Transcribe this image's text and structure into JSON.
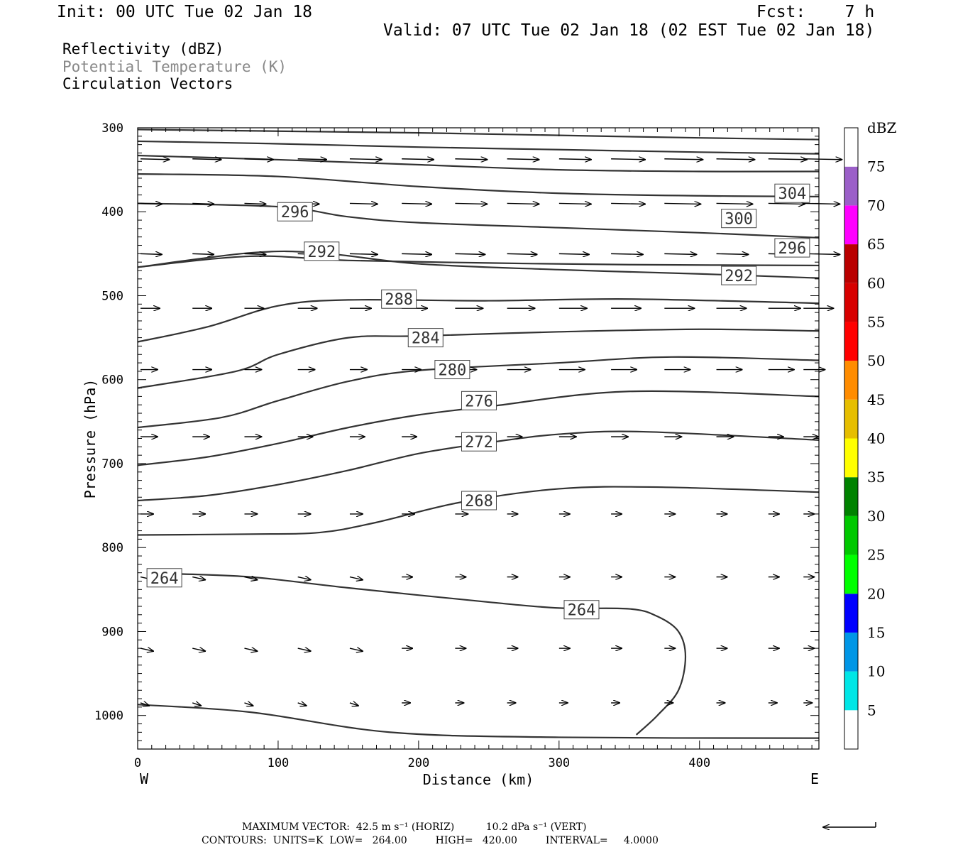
{
  "header": {
    "init": "Init: 00 UTC Tue 02 Jan 18",
    "fcst": "Fcst:    7 h",
    "valid": "Valid: 07 UTC Tue 02 Jan 18 (02 EST Tue 02 Jan 18)"
  },
  "fields": {
    "reflectivity": "Reflectivity (dBZ)",
    "theta": "Potential Temperature (K)",
    "vectors": "Circulation Vectors"
  },
  "footer": {
    "max_vector": "MAXIMUM VECTOR:  42.5 m s⁻¹ (HORIZ)          10.2 dPa s⁻¹ (VERT)",
    "contours": "CONTOURS:  UNITS=K  LOW=   264.00         HIGH=   420.00         INTERVAL=     4.0000"
  },
  "colors": {
    "contour": "#333333",
    "vector": "#000000"
  },
  "chart_data": {
    "type": "cross-section",
    "xlabel": "Distance (km)",
    "ylabel": "Pressure (hPa)",
    "x_end_left": "W",
    "x_end_right": "E",
    "xlim": [
      0,
      485
    ],
    "ylim": [
      1040,
      300
    ],
    "xticks": [
      0,
      100,
      200,
      300,
      400
    ],
    "yticks": [
      300,
      400,
      500,
      600,
      700,
      800,
      900,
      1000
    ],
    "colorbar": {
      "title": "dBZ",
      "labels": [
        "5",
        "10",
        "15",
        "20",
        "25",
        "30",
        "35",
        "40",
        "45",
        "50",
        "55",
        "60",
        "65",
        "70",
        "75"
      ],
      "colors": [
        "#ffffff",
        "#00e6e6",
        "#0096e6",
        "#0000ff",
        "#00ff00",
        "#00c800",
        "#008200",
        "#ffff00",
        "#e6be00",
        "#ff8c00",
        "#ff0000",
        "#d70000",
        "#b90000",
        "#ff00ff",
        "#9b5fc8",
        "#ffffff"
      ]
    },
    "isentropes": [
      {
        "label": "304",
        "points": [
          [
            0,
            302
          ],
          [
            100,
            304
          ],
          [
            200,
            306
          ],
          [
            300,
            309
          ],
          [
            400,
            312
          ],
          [
            485,
            314
          ]
        ],
        "labels_at": [
          [
            466,
            378
          ]
        ]
      },
      {
        "label": "",
        "points": [
          [
            0,
            316
          ],
          [
            100,
            319
          ],
          [
            200,
            323
          ],
          [
            300,
            326
          ],
          [
            400,
            329
          ],
          [
            485,
            331
          ]
        ],
        "labels_at": []
      },
      {
        "label": "",
        "points": [
          [
            0,
            333
          ],
          [
            100,
            338
          ],
          [
            200,
            344
          ],
          [
            300,
            350
          ],
          [
            400,
            352
          ],
          [
            485,
            352
          ]
        ],
        "labels_at": []
      },
      {
        "label": "",
        "points": [
          [
            0,
            355
          ],
          [
            100,
            358
          ],
          [
            200,
            370
          ],
          [
            300,
            378
          ],
          [
            400,
            381
          ],
          [
            485,
            382
          ]
        ],
        "labels_at": []
      },
      {
        "label": "296/300",
        "points": [
          [
            0,
            390
          ],
          [
            100,
            394
          ],
          [
            150,
            406
          ],
          [
            200,
            413
          ],
          [
            300,
            419
          ],
          [
            400,
            425
          ],
          [
            485,
            431
          ]
        ],
        "labels_at": [
          [
            112,
            400
          ],
          [
            428,
            408
          ]
        ]
      },
      {
        "label": "296",
        "points": [
          [
            0,
            466
          ],
          [
            80,
            453
          ],
          [
            150,
            458
          ],
          [
            250,
            461
          ],
          [
            350,
            463
          ],
          [
            485,
            464
          ]
        ],
        "labels_at": [
          [
            466,
            443
          ]
        ]
      },
      {
        "label": "292",
        "points": [
          [
            0,
            466
          ],
          [
            80,
            449
          ],
          [
            130,
            449
          ],
          [
            200,
            462
          ],
          [
            300,
            469
          ],
          [
            400,
            474
          ],
          [
            485,
            479
          ]
        ],
        "labels_at": [
          [
            131,
            447
          ],
          [
            428,
            476
          ]
        ]
      },
      {
        "label": "288",
        "points": [
          [
            0,
            555
          ],
          [
            50,
            537
          ],
          [
            100,
            512
          ],
          [
            150,
            505
          ],
          [
            250,
            506
          ],
          [
            350,
            504
          ],
          [
            485,
            509
          ]
        ],
        "labels_at": [
          [
            186,
            504
          ]
        ]
      },
      {
        "label": "284",
        "points": [
          [
            0,
            610
          ],
          [
            70,
            590
          ],
          [
            100,
            570
          ],
          [
            150,
            550
          ],
          [
            200,
            548
          ],
          [
            300,
            543
          ],
          [
            400,
            540
          ],
          [
            485,
            542
          ]
        ],
        "labels_at": [
          [
            205,
            550
          ]
        ]
      },
      {
        "label": "280",
        "points": [
          [
            0,
            657
          ],
          [
            60,
            645
          ],
          [
            100,
            625
          ],
          [
            150,
            602
          ],
          [
            200,
            589
          ],
          [
            300,
            580
          ],
          [
            380,
            573
          ],
          [
            485,
            577
          ]
        ],
        "labels_at": [
          [
            224,
            588
          ]
        ]
      },
      {
        "label": "276",
        "points": [
          [
            0,
            702
          ],
          [
            50,
            692
          ],
          [
            100,
            676
          ],
          [
            150,
            657
          ],
          [
            200,
            642
          ],
          [
            250,
            632
          ],
          [
            350,
            614
          ],
          [
            485,
            620
          ]
        ],
        "labels_at": [
          [
            243,
            625
          ]
        ]
      },
      {
        "label": "272",
        "points": [
          [
            0,
            744
          ],
          [
            50,
            738
          ],
          [
            100,
            725
          ],
          [
            150,
            708
          ],
          [
            200,
            688
          ],
          [
            250,
            675
          ],
          [
            300,
            665
          ],
          [
            360,
            662
          ],
          [
            485,
            672
          ]
        ],
        "labels_at": [
          [
            243,
            674
          ]
        ]
      },
      {
        "label": "268",
        "points": [
          [
            0,
            785
          ],
          [
            80,
            784
          ],
          [
            130,
            782
          ],
          [
            170,
            770
          ],
          [
            230,
            746
          ],
          [
            300,
            730
          ],
          [
            370,
            728
          ],
          [
            485,
            734
          ]
        ],
        "labels_at": [
          [
            243,
            744
          ]
        ]
      },
      {
        "label": "264",
        "points": [
          [
            20,
            831
          ],
          [
            80,
            835
          ],
          [
            150,
            848
          ],
          [
            250,
            865
          ],
          [
            300,
            872
          ],
          [
            350,
            873
          ],
          [
            370,
            882
          ],
          [
            385,
            900
          ],
          [
            390,
            930
          ],
          [
            385,
            970
          ],
          [
            370,
            1000
          ],
          [
            355,
            1023
          ]
        ],
        "labels_at": [
          [
            19,
            836
          ],
          [
            316,
            874
          ]
        ]
      },
      {
        "label": "",
        "points": [
          [
            0,
            987
          ],
          [
            80,
            996
          ],
          [
            180,
            1020
          ],
          [
            300,
            1026
          ],
          [
            485,
            1027
          ]
        ],
        "labels_at": []
      }
    ],
    "vector_rows": [
      {
        "p": 337,
        "len": [
          27,
          27,
          27,
          27,
          30,
          30,
          30,
          30,
          30,
          32,
          36,
          36,
          36,
          36
        ]
      },
      {
        "p": 390,
        "len": [
          20,
          20,
          20,
          20,
          26,
          28,
          30,
          30,
          30,
          32,
          34,
          34,
          34,
          34
        ]
      },
      {
        "p": 450,
        "len": [
          20,
          20,
          20,
          20,
          26,
          28,
          28,
          28,
          28,
          30,
          30,
          30,
          30,
          34
        ]
      },
      {
        "p": 515,
        "len": [
          18,
          18,
          18,
          18,
          20,
          24,
          26,
          26,
          26,
          28,
          28,
          28,
          30,
          28
        ]
      },
      {
        "p": 588,
        "len": [
          16,
          18,
          16,
          16,
          16,
          18,
          20,
          22,
          24,
          24,
          24,
          24,
          24,
          20
        ]
      },
      {
        "p": 668,
        "len": [
          16,
          16,
          16,
          14,
          14,
          14,
          14,
          14,
          16,
          16,
          16,
          16,
          14,
          14
        ]
      },
      {
        "p": 760,
        "len": [
          12,
          12,
          12,
          12,
          12,
          12,
          12,
          10,
          10,
          10,
          10,
          10,
          10,
          10
        ]
      },
      {
        "p": 835,
        "len": [
          12,
          12,
          12,
          12,
          12,
          10,
          10,
          10,
          10,
          10,
          10,
          10,
          10,
          10
        ]
      },
      {
        "p": 920,
        "len": [
          12,
          12,
          12,
          12,
          12,
          10,
          10,
          10,
          10,
          10,
          10,
          10,
          10,
          10
        ]
      },
      {
        "p": 985,
        "len": [
          8,
          8,
          8,
          8,
          8,
          8,
          8,
          8,
          8,
          8,
          8,
          8,
          8,
          8
        ]
      }
    ]
  }
}
